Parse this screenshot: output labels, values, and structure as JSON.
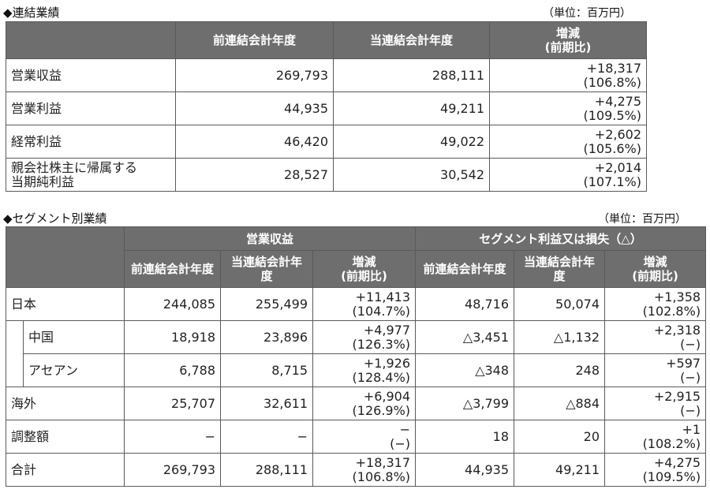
{
  "section1": {
    "title": "◆連結業績",
    "unit": "（単位：百万円）",
    "headers": [
      "前連結会計年度",
      "当連結会計年度",
      "増減\n(前期比)"
    ],
    "rows": [
      {
        "label": "営業収益",
        "prev": "269,793",
        "curr": "288,111",
        "diff": "+18,317",
        "ratio": "(106.8%)"
      },
      {
        "label": "営業利益",
        "prev": "44,935",
        "curr": "49,211",
        "diff": "+4,275",
        "ratio": "(109.5%)"
      },
      {
        "label": "経常利益",
        "prev": "46,420",
        "curr": "49,022",
        "diff": "+2,602",
        "ratio": "(105.6%)"
      },
      {
        "label": "親会社株主に帰属する\n当期純利益",
        "prev": "28,527",
        "curr": "30,542",
        "diff": "+2,014",
        "ratio": "(107.1%)"
      }
    ]
  },
  "section2": {
    "title": "◆セグメント別業績",
    "unit": "（単位：百万円）",
    "group_headers": [
      "営業収益",
      "セグメント利益又は損失（△）"
    ],
    "sub_headers": [
      "前連結会計年度",
      "当連結会計年度",
      "増減\n(前期比)",
      "前連結会計年度",
      "当連結会計年度",
      "増減\n(前期比)"
    ],
    "rows": [
      {
        "label": "日本",
        "indent": false,
        "rev_prev": "244,085",
        "rev_curr": "255,499",
        "rev_diff": "+11,413",
        "rev_ratio": "(104.7%)",
        "seg_prev": "48,716",
        "seg_curr": "50,074",
        "seg_diff": "+1,358",
        "seg_ratio": "(102.8%)"
      },
      {
        "label": "中国",
        "indent": true,
        "rev_prev": "18,918",
        "rev_curr": "23,896",
        "rev_diff": "+4,977",
        "rev_ratio": "(126.3%)",
        "seg_prev": "△3,451",
        "seg_curr": "△1,132",
        "seg_diff": "+2,318",
        "seg_ratio": "(−)"
      },
      {
        "label": "アセアン",
        "indent": true,
        "rev_prev": "6,788",
        "rev_curr": "8,715",
        "rev_diff": "+1,926",
        "rev_ratio": "(128.4%)",
        "seg_prev": "△348",
        "seg_curr": "248",
        "seg_diff": "+597",
        "seg_ratio": "(−)"
      },
      {
        "label": "海外",
        "indent": false,
        "rev_prev": "25,707",
        "rev_curr": "32,611",
        "rev_diff": "+6,904",
        "rev_ratio": "(126.9%)",
        "seg_prev": "△3,799",
        "seg_curr": "△884",
        "seg_diff": "+2,915",
        "seg_ratio": "(−)"
      },
      {
        "label": "調整額",
        "indent": false,
        "rev_prev": "−",
        "rev_curr": "−",
        "rev_diff": "−",
        "rev_ratio": "(−)",
        "seg_prev": "18",
        "seg_curr": "20",
        "seg_diff": "+1",
        "seg_ratio": "(108.2%)"
      },
      {
        "label": "合計",
        "indent": false,
        "rev_prev": "269,793",
        "rev_curr": "288,111",
        "rev_diff": "+18,317",
        "rev_ratio": "(106.8%)",
        "seg_prev": "44,935",
        "seg_curr": "49,211",
        "seg_diff": "+4,275",
        "seg_ratio": "(109.5%)"
      }
    ]
  }
}
